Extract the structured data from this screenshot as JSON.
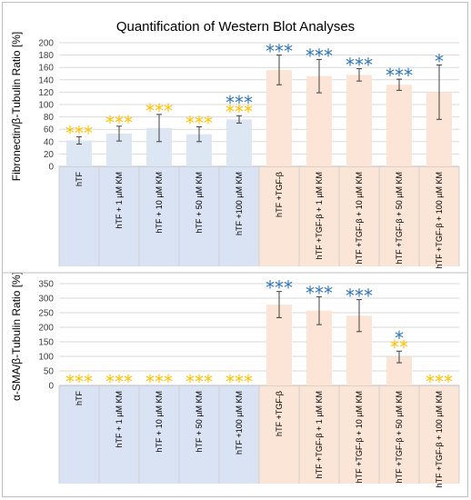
{
  "title": "Quantification of Western Blot Analyses",
  "colors": {
    "blue_bg": "#dae3f3",
    "salmon_bg": "#fbe5d6",
    "blue_bar": "#dde7f4",
    "salmon_bar": "#fce4d6",
    "star_yellow": "#ffc000",
    "star_blue": "#2e75b6",
    "grid": "#d9d9d9",
    "axis_text": "#595959"
  },
  "chart_data": [
    {
      "type": "bar",
      "ylabel": "Fibronectin/β-Tubulin Ratio [%]",
      "ylim": [
        0,
        200
      ],
      "yticks": [
        "0",
        "20",
        "40",
        "60",
        "80",
        "100",
        "120",
        "140",
        "160",
        "180",
        "200"
      ],
      "grid": true,
      "categories": [
        "hTF",
        "hTF + 1 µM KM",
        "hTF + 10 µM KM",
        "hTF + 50 µM KM",
        "hTF +100 µM KM",
        "hTF +TGF-β",
        "hTF +TGF-β + 1 µM KM",
        "hTF +TGF-β + 10 µM KM",
        "hTF +TGF-β + 50 µM KM",
        "hTF +TGF-β + 100 µM KM"
      ],
      "values": [
        42,
        53,
        62,
        52,
        76,
        156,
        146,
        148,
        132,
        120
      ],
      "errors": [
        6,
        12,
        22,
        12,
        6,
        24,
        27,
        10,
        9,
        44
      ],
      "groups": [
        "blue",
        "blue",
        "blue",
        "blue",
        "blue",
        "salmon",
        "salmon",
        "salmon",
        "salmon",
        "salmon"
      ],
      "annotations": [
        [
          {
            "text": "***",
            "color": "yellow"
          }
        ],
        [
          {
            "text": "***",
            "color": "yellow"
          }
        ],
        [
          {
            "text": "***",
            "color": "yellow"
          }
        ],
        [
          {
            "text": "***",
            "color": "yellow"
          }
        ],
        [
          {
            "text": "***",
            "color": "blue"
          },
          {
            "text": "***",
            "color": "yellow"
          }
        ],
        [
          {
            "text": "***",
            "color": "blue"
          }
        ],
        [
          {
            "text": "***",
            "color": "blue"
          }
        ],
        [
          {
            "text": "***",
            "color": "blue"
          }
        ],
        [
          {
            "text": "***",
            "color": "blue"
          }
        ],
        [
          {
            "text": "*",
            "color": "blue"
          }
        ]
      ]
    },
    {
      "type": "bar",
      "ylabel": "α-SMA/β-Tubulin Ratio [%]",
      "ylim": [
        0,
        350
      ],
      "yticks": [
        "0",
        "50",
        "100",
        "150",
        "200",
        "250",
        "300",
        "350"
      ],
      "grid": true,
      "categories": [
        "hTF",
        "hTF + 1 µM KM",
        "hTF + 10 µM KM",
        "hTF + 50 µM KM",
        "hTF +100 µM KM",
        "hTF +TGF-β",
        "hTF +TGF-β + 1 µM KM",
        "hTF +TGF-β + 10 µM KM",
        "hTF +TGF-β + 50 µM KM",
        "hTF +TGF-β + 100 µM KM"
      ],
      "values": [
        0,
        0,
        0,
        0,
        0,
        278,
        257,
        240,
        98,
        0
      ],
      "errors": [
        0,
        0,
        0,
        0,
        0,
        45,
        48,
        55,
        20,
        0
      ],
      "groups": [
        "blue",
        "blue",
        "blue",
        "blue",
        "blue",
        "salmon",
        "salmon",
        "salmon",
        "salmon",
        "salmon"
      ],
      "annotations": [
        [
          {
            "text": "***",
            "color": "yellow"
          }
        ],
        [
          {
            "text": "***",
            "color": "yellow"
          }
        ],
        [
          {
            "text": "***",
            "color": "yellow"
          }
        ],
        [
          {
            "text": "***",
            "color": "yellow"
          }
        ],
        [
          {
            "text": "***",
            "color": "yellow"
          }
        ],
        [
          {
            "text": "***",
            "color": "blue"
          }
        ],
        [
          {
            "text": "***",
            "color": "blue"
          }
        ],
        [
          {
            "text": "***",
            "color": "blue"
          }
        ],
        [
          {
            "text": "*",
            "color": "blue"
          },
          {
            "text": "**",
            "color": "yellow"
          }
        ],
        [
          {
            "text": "***",
            "color": "yellow"
          }
        ]
      ]
    }
  ]
}
